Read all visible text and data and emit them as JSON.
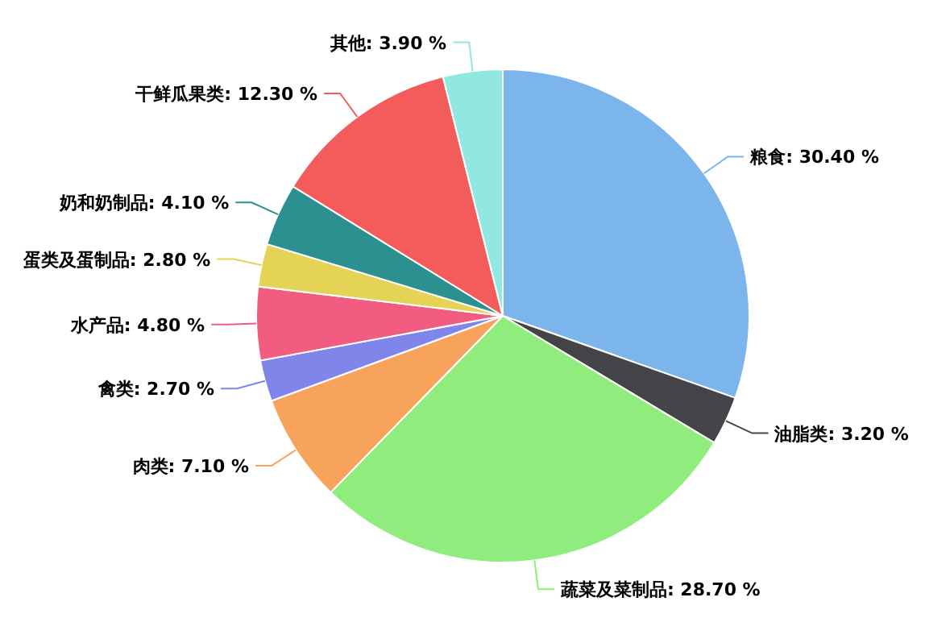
{
  "chart_data": {
    "type": "pie",
    "categories": [
      "粮食",
      "油脂类",
      "蔬菜及菜制品",
      "肉类",
      "禽类",
      "水产品",
      "蛋类及蛋制品",
      "奶和奶制品",
      "干鲜瓜果类",
      "其他"
    ],
    "values": [
      30.4,
      3.2,
      28.7,
      7.1,
      2.7,
      4.8,
      2.8,
      4.1,
      12.3,
      3.9
    ],
    "value_labels": [
      "30.40 %",
      "3.20 %",
      "28.70 %",
      "7.10 %",
      "2.70 %",
      "4.80 %",
      "2.80 %",
      "4.10 %",
      "12.30 %",
      "3.90 %"
    ],
    "colors": [
      "#7cb5ec",
      "#434348",
      "#90ed7d",
      "#f7a35c",
      "#8085e9",
      "#f15c80",
      "#e4d354",
      "#2b908f",
      "#f45b5b",
      "#91e8e1"
    ]
  }
}
